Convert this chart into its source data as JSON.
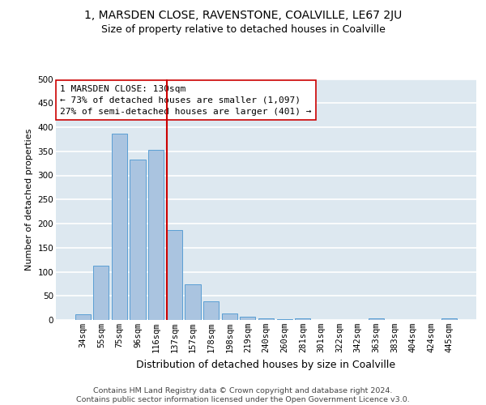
{
  "title": "1, MARSDEN CLOSE, RAVENSTONE, COALVILLE, LE67 2JU",
  "subtitle": "Size of property relative to detached houses in Coalville",
  "xlabel": "Distribution of detached houses by size in Coalville",
  "ylabel": "Number of detached properties",
  "bar_labels": [
    "34sqm",
    "55sqm",
    "75sqm",
    "96sqm",
    "116sqm",
    "137sqm",
    "157sqm",
    "178sqm",
    "198sqm",
    "219sqm",
    "240sqm",
    "260sqm",
    "281sqm",
    "301sqm",
    "322sqm",
    "342sqm",
    "363sqm",
    "383sqm",
    "404sqm",
    "424sqm",
    "445sqm"
  ],
  "bar_values": [
    11,
    113,
    387,
    332,
    353,
    187,
    74,
    38,
    13,
    7,
    3,
    1,
    4,
    0,
    0,
    0,
    3,
    0,
    0,
    0,
    4
  ],
  "bar_color": "#aac4e0",
  "bar_edge_color": "#5a9fd4",
  "background_color": "#dde8f0",
  "grid_color": "#ffffff",
  "vline_color": "#cc0000",
  "annotation_text": "1 MARSDEN CLOSE: 130sqm\n← 73% of detached houses are smaller (1,097)\n27% of semi-detached houses are larger (401) →",
  "annotation_box_color": "#ffffff",
  "annotation_box_edge": "#cc0000",
  "ylim": [
    0,
    500
  ],
  "yticks": [
    0,
    50,
    100,
    150,
    200,
    250,
    300,
    350,
    400,
    450,
    500
  ],
  "footer_text": "Contains HM Land Registry data © Crown copyright and database right 2024.\nContains public sector information licensed under the Open Government Licence v3.0.",
  "title_fontsize": 10,
  "subtitle_fontsize": 9,
  "xlabel_fontsize": 9,
  "ylabel_fontsize": 8,
  "tick_fontsize": 7.5,
  "annotation_fontsize": 8,
  "footer_fontsize": 6.8
}
